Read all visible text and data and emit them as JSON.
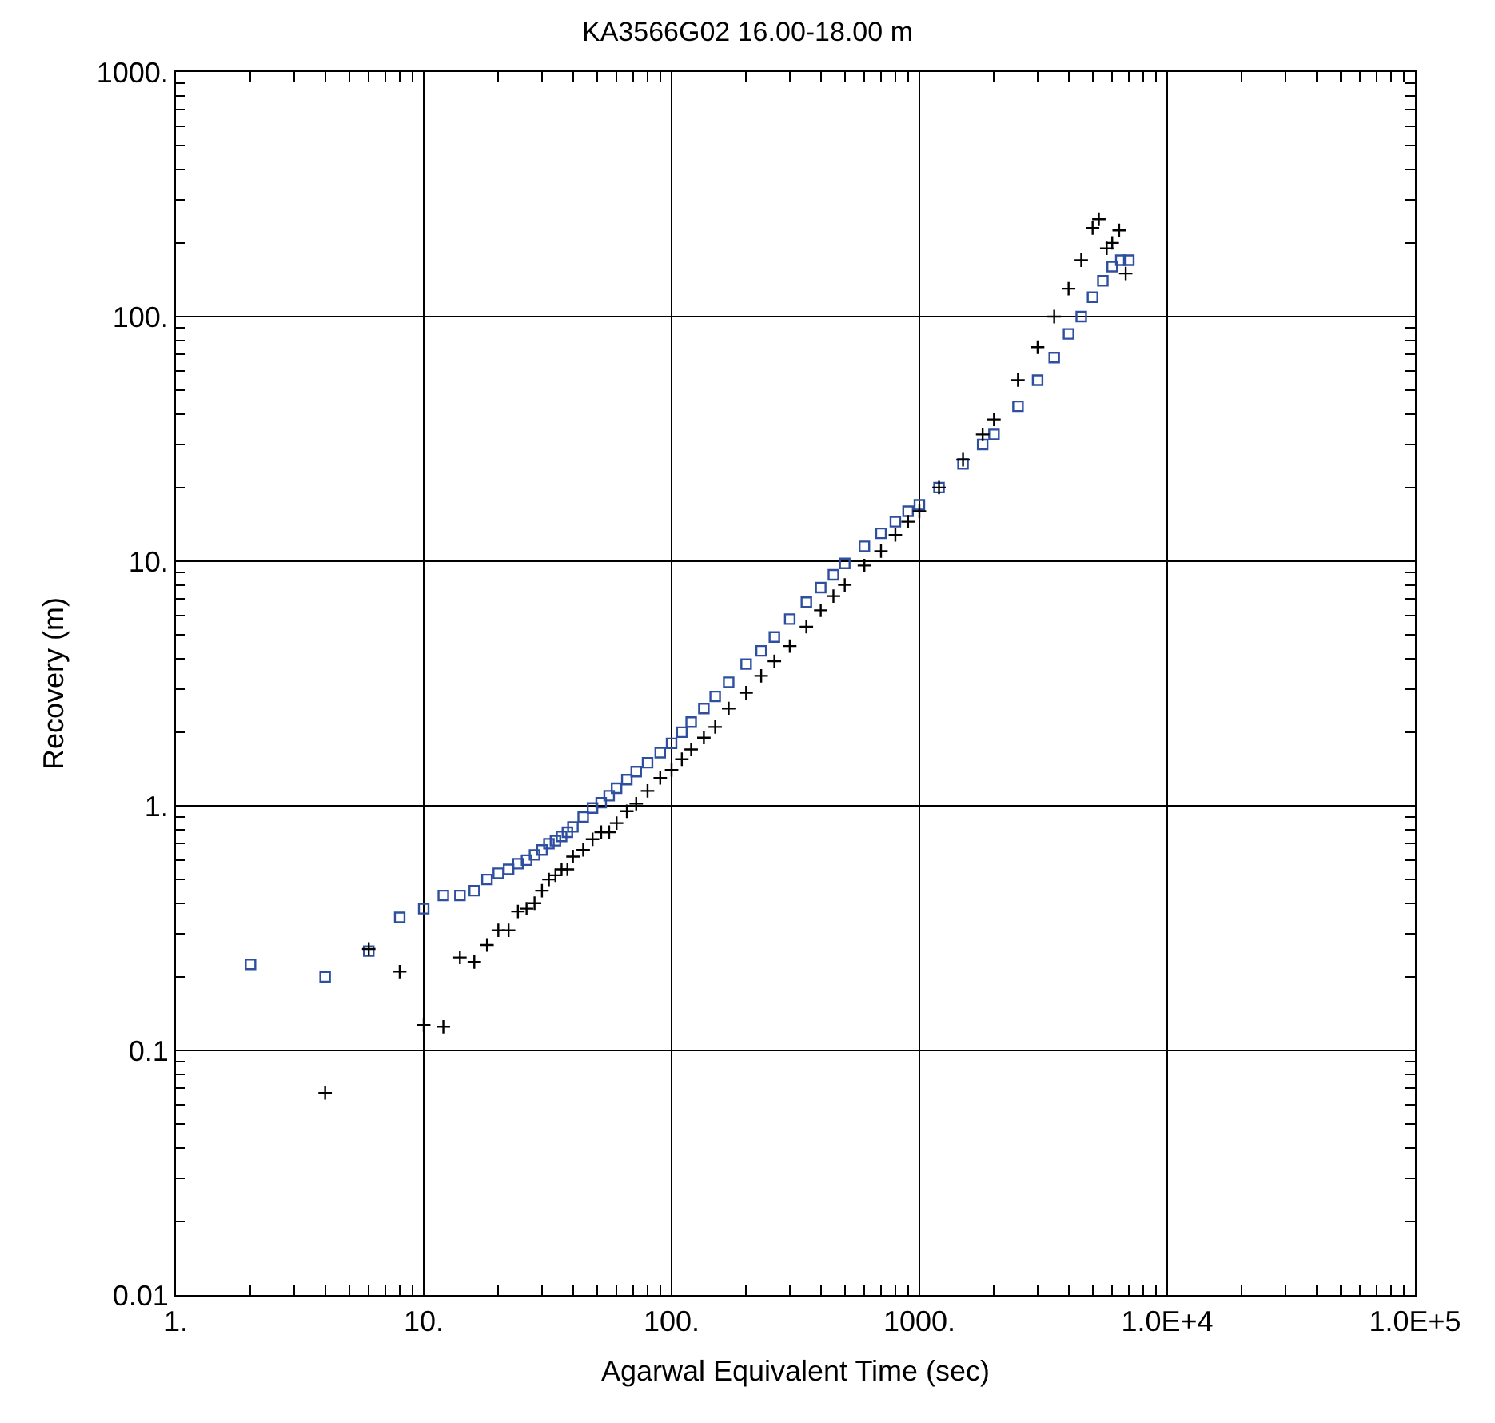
{
  "chart_data": {
    "type": "scatter",
    "title": "KA3566G02 16.00-18.00 m",
    "xlabel": "Agarwal Equivalent Time (sec)",
    "ylabel": "Recovery (m)",
    "log": "xy",
    "grid": true,
    "xlim": [
      1,
      100000
    ],
    "ylim": [
      0.01,
      1000
    ],
    "xticks": [
      {
        "value": 1,
        "label": "1."
      },
      {
        "value": 10,
        "label": "10."
      },
      {
        "value": 100,
        "label": "100."
      },
      {
        "value": 1000,
        "label": "1000."
      },
      {
        "value": 10000,
        "label": "1.0E+4"
      },
      {
        "value": 100000,
        "label": "1.0E+5"
      }
    ],
    "yticks": [
      {
        "value": 0.01,
        "label": "0.01"
      },
      {
        "value": 0.1,
        "label": "0.1"
      },
      {
        "value": 1,
        "label": "1."
      },
      {
        "value": 10,
        "label": "10."
      },
      {
        "value": 100,
        "label": "100."
      },
      {
        "value": 1000,
        "label": "1000."
      }
    ],
    "series": [
      {
        "color": "#2e4fa0",
        "marker": "square",
        "x": [
          2,
          4,
          6,
          8,
          10,
          12,
          14,
          16,
          18,
          20,
          22,
          24,
          26,
          28,
          30,
          32,
          34,
          36,
          38,
          40,
          44,
          48,
          52,
          56,
          60,
          66,
          72,
          80,
          90,
          100,
          110,
          120,
          135,
          150,
          170,
          200,
          230,
          260,
          300,
          350,
          400,
          450,
          500,
          600,
          700,
          800,
          900,
          1000,
          1200,
          1500,
          1800,
          2000,
          2500,
          3000,
          3500,
          4000,
          4500,
          5000,
          5500,
          6000,
          6500,
          7000
        ],
        "values": [
          0.225,
          0.2,
          0.255,
          0.35,
          0.38,
          0.43,
          0.43,
          0.45,
          0.5,
          0.53,
          0.55,
          0.58,
          0.6,
          0.63,
          0.66,
          0.7,
          0.72,
          0.75,
          0.78,
          0.82,
          0.9,
          0.98,
          1.03,
          1.1,
          1.18,
          1.28,
          1.38,
          1.5,
          1.65,
          1.8,
          2.0,
          2.2,
          2.5,
          2.8,
          3.2,
          3.8,
          4.3,
          4.9,
          5.8,
          6.8,
          7.8,
          8.8,
          9.8,
          11.5,
          13,
          14.5,
          16,
          17,
          20,
          25,
          30,
          33,
          43,
          55,
          68,
          85,
          100,
          120,
          140,
          160,
          170,
          170
        ]
      },
      {
        "color": "#000000",
        "marker": "cross",
        "x": [
          4,
          6,
          8,
          10,
          12,
          14,
          16,
          18,
          20,
          22,
          24,
          26,
          28,
          30,
          32,
          34,
          36,
          38,
          40,
          44,
          48,
          52,
          56,
          60,
          66,
          72,
          80,
          90,
          100,
          110,
          120,
          135,
          150,
          170,
          200,
          230,
          260,
          300,
          350,
          400,
          450,
          500,
          600,
          700,
          800,
          900,
          1000,
          1200,
          1500,
          1800,
          2000,
          2500,
          3000,
          3500,
          4000,
          4500,
          5000,
          5300,
          5700,
          6000,
          6400,
          6800
        ],
        "values": [
          0.067,
          0.26,
          0.21,
          0.127,
          0.125,
          0.24,
          0.23,
          0.27,
          0.31,
          0.31,
          0.37,
          0.38,
          0.4,
          0.45,
          0.5,
          0.52,
          0.55,
          0.55,
          0.62,
          0.66,
          0.73,
          0.78,
          0.78,
          0.85,
          0.95,
          1.02,
          1.15,
          1.3,
          1.4,
          1.55,
          1.7,
          1.9,
          2.1,
          2.5,
          2.9,
          3.4,
          3.9,
          4.5,
          5.4,
          6.3,
          7.2,
          8,
          9.6,
          11,
          12.8,
          14.5,
          16,
          20,
          26,
          33,
          38,
          55,
          75,
          100,
          130,
          170,
          230,
          250,
          190,
          200,
          225,
          150
        ]
      }
    ]
  }
}
